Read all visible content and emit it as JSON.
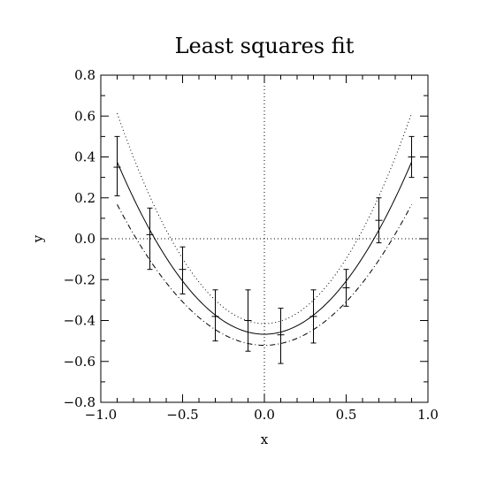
{
  "chart_data": {
    "type": "line",
    "title": "Least squares fit",
    "xlabel": "x",
    "ylabel": "y",
    "xlim": [
      -1.0,
      1.0
    ],
    "ylim": [
      -0.8,
      0.8
    ],
    "xticks": [
      -1.0,
      -0.5,
      0.0,
      0.5,
      1.0
    ],
    "xtick_labels": [
      "−1.0",
      "−0.5",
      "0.0",
      "0.5",
      "1.0"
    ],
    "yticks": [
      -0.8,
      -0.6,
      -0.4,
      -0.2,
      0.0,
      0.2,
      0.4,
      0.6,
      0.8
    ],
    "ytick_labels": [
      "−0.8",
      "−0.6",
      "−0.4",
      "−0.2",
      "0.0",
      "0.2",
      "0.4",
      "0.6",
      "0.8"
    ],
    "zero_lines": true,
    "grid": false,
    "points": {
      "x": [
        -0.9,
        -0.7,
        -0.5,
        -0.3,
        -0.1,
        0.1,
        0.3,
        0.5,
        0.7,
        0.9
      ],
      "y": [
        0.35,
        0.02,
        -0.15,
        -0.38,
        -0.4,
        -0.47,
        -0.38,
        -0.24,
        0.09,
        0.4
      ],
      "ylo": [
        0.21,
        -0.15,
        -0.27,
        -0.5,
        -0.55,
        -0.61,
        -0.51,
        -0.33,
        -0.02,
        0.3
      ],
      "yhi": [
        0.5,
        0.15,
        -0.04,
        -0.25,
        -0.25,
        -0.34,
        -0.25,
        -0.15,
        0.2,
        0.5
      ]
    },
    "series": [
      {
        "style": "solid",
        "color": "#000000",
        "coeffs": [
          -0.467,
          0.0,
          1.04
        ]
      },
      {
        "style": "dotted",
        "color": "#000000",
        "coeffs": [
          -0.415,
          0.0,
          1.27
        ]
      },
      {
        "style": "dashdot",
        "color": "#000000",
        "coeffs": [
          -0.521,
          0.0,
          0.85
        ]
      }
    ]
  }
}
